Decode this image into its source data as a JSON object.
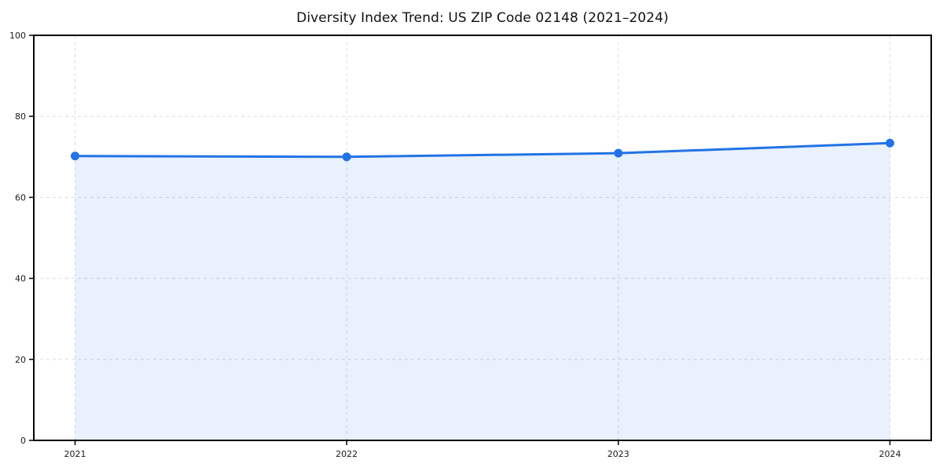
{
  "page": {
    "background": "#ffffff"
  },
  "chart_data": {
    "type": "area",
    "title": "Diversity Index Trend: US ZIP Code 02148 (2021–2024)",
    "categories": [
      "2021",
      "2022",
      "2023",
      "2024"
    ],
    "series": [
      {
        "name": "Diversity Index",
        "values": [
          70.2,
          70.0,
          70.9,
          73.4
        ]
      }
    ],
    "xlabel": "",
    "ylabel": "",
    "ylim": [
      0,
      100
    ],
    "yticks": [
      0,
      20,
      40,
      60,
      80,
      100
    ],
    "grid": true,
    "grid_style": "dashed",
    "legend_position": "none",
    "marker": "circle",
    "colors": {
      "line": "#2273e6",
      "point": "#2273e6",
      "fill": "rgba(34,115,230,0.10)",
      "grid": "#dcdcdc",
      "spine": "#000000",
      "tick_text": "#1a1a1a"
    }
  }
}
